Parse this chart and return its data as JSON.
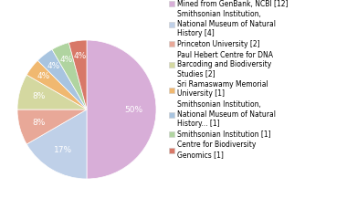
{
  "legend_labels": [
    "Mined from GenBank, NCBI [12]",
    "Smithsonian Institution,\nNational Museum of Natural\nHistory [4]",
    "Princeton University [2]",
    "Paul Hebert Centre for DNA\nBarcoding and Biodiversity\nStudies [2]",
    "Sri Ramaswamy Memorial\nUniversity [1]",
    "Smithsonian Institution,\nNational Museum of Natural\nHistory... [1]",
    "Smithsonian Institution [1]",
    "Centre for Biodiversity\nGenomics [1]"
  ],
  "values": [
    12,
    4,
    2,
    2,
    1,
    1,
    1,
    1
  ],
  "colors": [
    "#d8aed8",
    "#bfd0e8",
    "#e8a898",
    "#d4d8a0",
    "#f0b870",
    "#a8c4e0",
    "#b0d4a0",
    "#d87868"
  ],
  "pct_distances": [
    0.68,
    0.68,
    0.72,
    0.72,
    0.78,
    0.78,
    0.78,
    0.78
  ],
  "text_color": "#ffffff",
  "background_color": "#ffffff",
  "fontsize_pct": 6.5,
  "fontsize_legend": 5.5
}
